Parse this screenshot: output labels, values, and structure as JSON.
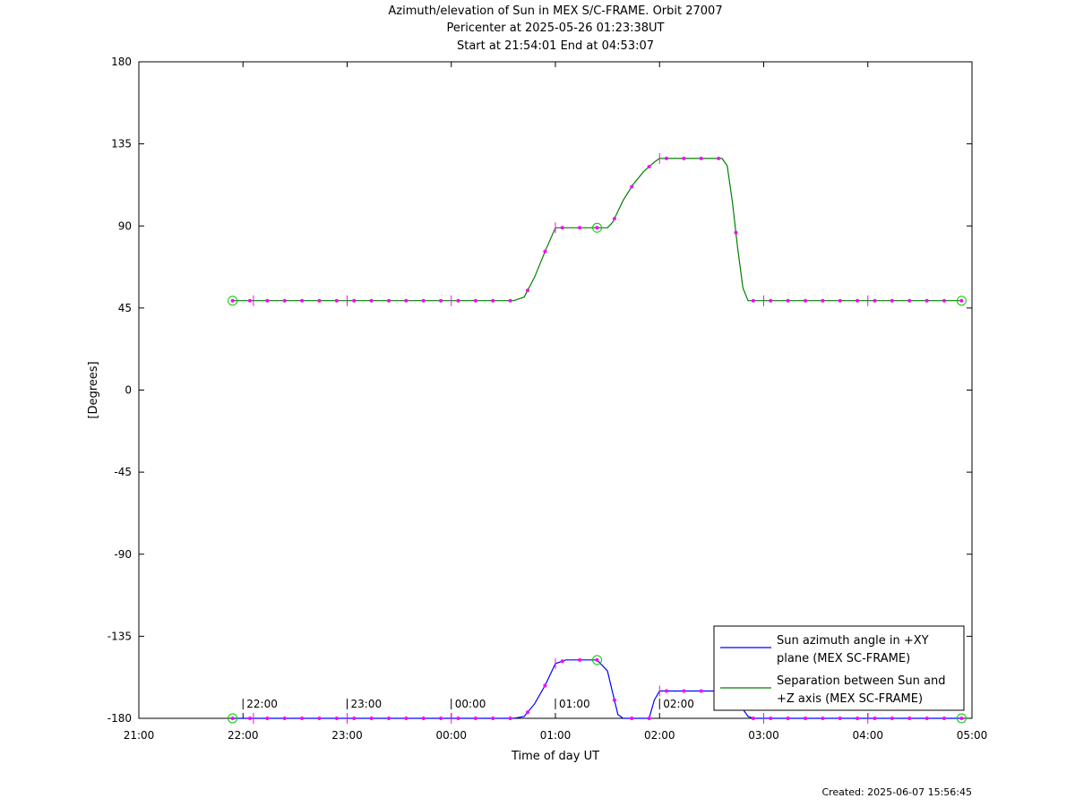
{
  "chart_data": {
    "type": "line",
    "title": "Azimuth/elevation of Sun in MEX S/C-FRAME.  Orbit 27007",
    "subtitle1": "Pericenter at 2025-05-26 01:23:38UT",
    "subtitle2": "Start at 21:54:01 End at 04:53:07",
    "xlabel": "Time of day UT",
    "ylabel": "[Degrees]",
    "xlim": [
      21,
      29
    ],
    "ylim": [
      -180,
      180
    ],
    "x_tick_values": [
      21,
      22,
      23,
      24,
      25,
      26,
      27,
      28,
      29
    ],
    "x_tick_labels": [
      "21:00",
      "22:00",
      "23:00",
      "00:00",
      "01:00",
      "02:00",
      "03:00",
      "04:00",
      "05:00"
    ],
    "y_tick_values": [
      180,
      135,
      90,
      45,
      0,
      -45,
      -90,
      -135,
      -180
    ],
    "y_tick_labels": [
      "180",
      "135",
      "90",
      "45",
      "0",
      "-45",
      "-90",
      "-135",
      "-180"
    ],
    "time_annotations": [
      {
        "x": 22.0,
        "label": "22:00"
      },
      {
        "x": 23.0,
        "label": "23:00"
      },
      {
        "x": 24.0,
        "label": "00:00"
      },
      {
        "x": 25.0,
        "label": "01:00"
      },
      {
        "x": 26.0,
        "label": "02:00"
      },
      {
        "x": 27.0,
        "label": "03:00"
      },
      {
        "x": 28.0,
        "label": "04:00"
      }
    ],
    "grid": false,
    "legend_position": "bottom-right",
    "series": [
      {
        "name": "Sun azimuth angle in +XY plane (MEX SC-FRAME)",
        "legend_lines": [
          "Sun azimuth angle in +XY",
          "plane (MEX SC-FRAME)"
        ],
        "color": "#0000ff",
        "x": [
          21.9,
          24.6,
          24.7,
          24.8,
          24.9,
          25.0,
          25.1,
          25.2,
          25.3,
          25.4,
          25.5,
          25.55,
          25.6,
          25.65,
          25.9,
          25.95,
          26.0,
          26.1,
          26.6,
          26.7,
          26.75,
          26.8,
          26.85,
          26.9,
          28.9
        ],
        "y": [
          -180,
          -180,
          -179,
          -172,
          -162,
          -150,
          -148,
          -148,
          -148,
          -148,
          -154,
          -166,
          -178,
          -180,
          -180,
          -170,
          -165,
          -165,
          -165,
          -166,
          -170,
          -175,
          -179,
          -180,
          -180
        ]
      },
      {
        "name": "Separation between Sun and +Z axis (MEX SC-FRAME)",
        "legend_lines": [
          "Separation between Sun and",
          "+Z axis (MEX SC-FRAME)"
        ],
        "color": "#008000",
        "x": [
          21.9,
          24.6,
          24.7,
          24.8,
          24.9,
          25.0,
          25.1,
          25.2,
          25.3,
          25.4,
          25.5,
          25.55,
          25.65,
          25.75,
          25.85,
          25.95,
          26.0,
          26.1,
          26.6,
          26.65,
          26.7,
          26.75,
          26.8,
          26.85,
          28.9
        ],
        "y": [
          49,
          49,
          51,
          62,
          76,
          89,
          89,
          89,
          89,
          89,
          89,
          92,
          104,
          113,
          120,
          125,
          127,
          127,
          127,
          123,
          103,
          78,
          56,
          49,
          49
        ]
      }
    ],
    "markers": {
      "color": "#ff00ff",
      "cross_ticks_x": [
        22.1,
        23.0,
        24.0,
        25.0,
        26.0,
        27.0,
        28.0
      ],
      "circle_color": "#00cc00",
      "circles": [
        {
          "x": 21.9,
          "y": 49
        },
        {
          "x": 25.4,
          "y": 89
        },
        {
          "x": 28.9,
          "y": 49
        },
        {
          "x": 21.9,
          "y": -180
        },
        {
          "x": 25.4,
          "y": -148
        },
        {
          "x": 28.9,
          "y": -180
        }
      ]
    }
  },
  "footer": {
    "created": "Created: 2025-06-07 15:56:45"
  }
}
